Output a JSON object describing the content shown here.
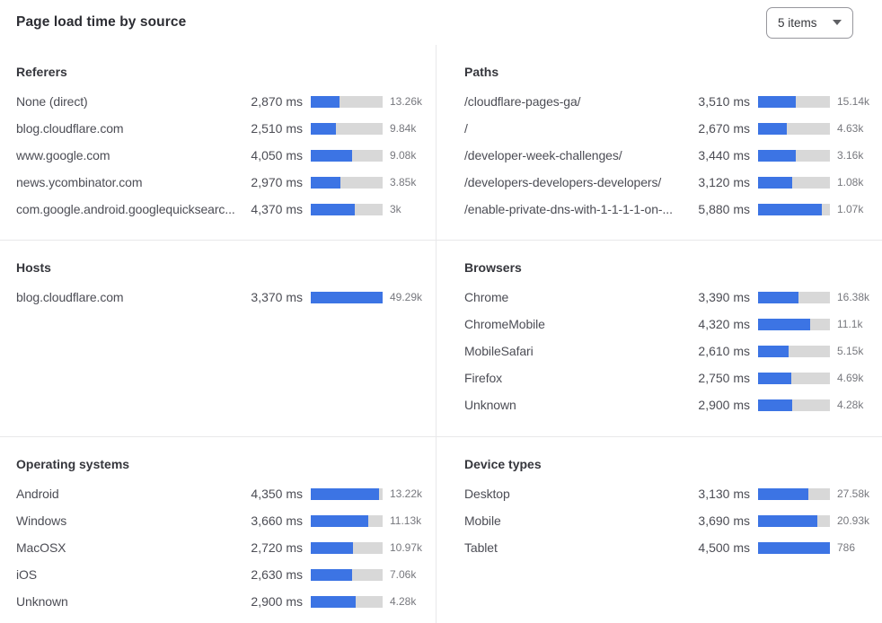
{
  "header": {
    "title": "Page load time by source",
    "items_select": {
      "value": "5 items"
    }
  },
  "colors": {
    "bar_fill": "#3c74e4",
    "bar_track": "#d8d8d8",
    "divider": "#e8e8ea"
  },
  "sections": [
    {
      "panels": [
        {
          "title": "Referers",
          "rows": [
            {
              "label": "None (direct)",
              "value": "2,870 ms",
              "count": "13.26k",
              "bar_pct": 40
            },
            {
              "label": "blog.cloudflare.com",
              "value": "2,510 ms",
              "count": "9.84k",
              "bar_pct": 35
            },
            {
              "label": "www.google.com",
              "value": "4,050 ms",
              "count": "9.08k",
              "bar_pct": 57
            },
            {
              "label": "news.ycombinator.com",
              "value": "2,970 ms",
              "count": "3.85k",
              "bar_pct": 41
            },
            {
              "label": "com.google.android.googlequicksearc...",
              "value": "4,370 ms",
              "count": "3k",
              "bar_pct": 61
            }
          ]
        },
        {
          "title": "Paths",
          "rows": [
            {
              "label": "/cloudflare-pages-ga/",
              "value": "3,510 ms",
              "count": "15.14k",
              "bar_pct": 53
            },
            {
              "label": "/",
              "value": "2,670 ms",
              "count": "4.63k",
              "bar_pct": 40
            },
            {
              "label": "/developer-week-challenges/",
              "value": "3,440 ms",
              "count": "3.16k",
              "bar_pct": 52
            },
            {
              "label": "/developers-developers-developers/",
              "value": "3,120 ms",
              "count": "1.08k",
              "bar_pct": 47
            },
            {
              "label": "/enable-private-dns-with-1-1-1-1-on-...",
              "value": "5,880 ms",
              "count": "1.07k",
              "bar_pct": 89
            }
          ]
        }
      ]
    },
    {
      "panels": [
        {
          "title": "Hosts",
          "rows": [
            {
              "label": "blog.cloudflare.com",
              "value": "3,370 ms",
              "count": "49.29k",
              "bar_pct": 100
            }
          ]
        },
        {
          "title": "Browsers",
          "rows": [
            {
              "label": "Chrome",
              "value": "3,390 ms",
              "count": "16.38k",
              "bar_pct": 56
            },
            {
              "label": "ChromeMobile",
              "value": "4,320 ms",
              "count": "11.1k",
              "bar_pct": 72
            },
            {
              "label": "MobileSafari",
              "value": "2,610 ms",
              "count": "5.15k",
              "bar_pct": 43
            },
            {
              "label": "Firefox",
              "value": "2,750 ms",
              "count": "4.69k",
              "bar_pct": 46
            },
            {
              "label": "Unknown",
              "value": "2,900 ms",
              "count": "4.28k",
              "bar_pct": 48
            }
          ]
        }
      ]
    },
    {
      "panels": [
        {
          "title": "Operating systems",
          "rows": [
            {
              "label": "Android",
              "value": "4,350 ms",
              "count": "13.22k",
              "bar_pct": 95
            },
            {
              "label": "Windows",
              "value": "3,660 ms",
              "count": "11.13k",
              "bar_pct": 80
            },
            {
              "label": "MacOSX",
              "value": "2,720 ms",
              "count": "10.97k",
              "bar_pct": 59
            },
            {
              "label": "iOS",
              "value": "2,630 ms",
              "count": "7.06k",
              "bar_pct": 57
            },
            {
              "label": "Unknown",
              "value": "2,900 ms",
              "count": "4.28k",
              "bar_pct": 63
            }
          ]
        },
        {
          "title": "Device types",
          "rows": [
            {
              "label": "Desktop",
              "value": "3,130 ms",
              "count": "27.58k",
              "bar_pct": 70
            },
            {
              "label": "Mobile",
              "value": "3,690 ms",
              "count": "20.93k",
              "bar_pct": 82
            },
            {
              "label": "Tablet",
              "value": "4,500 ms",
              "count": "786",
              "bar_pct": 100
            }
          ]
        }
      ]
    }
  ]
}
